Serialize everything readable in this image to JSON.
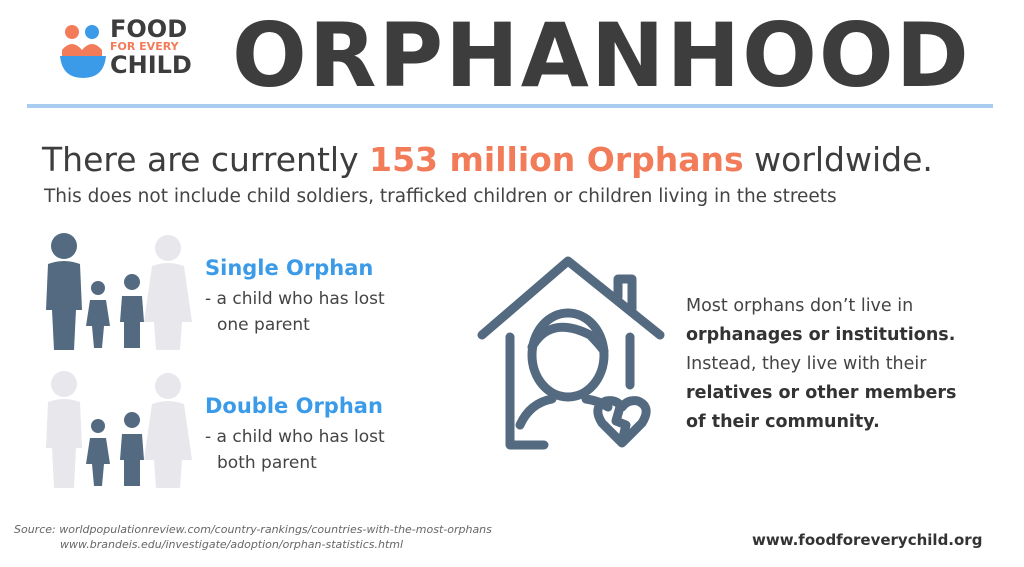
{
  "logo": {
    "line1": "FOOD",
    "line2": "FOR EVERY",
    "line3": "CHILD"
  },
  "header": {
    "title": "ORPHANHOOD"
  },
  "headline": {
    "before": "There are currently",
    "highlight": "153 million Orphans",
    "after": "worldwide."
  },
  "subline": "This does not include child soldiers, trafficked children or children living in the streets",
  "single_orphan": {
    "title": "Single Orphan",
    "lines": [
      "- a child who has lost",
      "one parent"
    ]
  },
  "double_orphan": {
    "title": "Double Orphan",
    "lines": [
      "- a child who has lost",
      "both parent"
    ]
  },
  "note": {
    "lines": [
      {
        "text": "Most orphans don’t live in",
        "bold": false
      },
      {
        "text": "orphanages or institutions.",
        "bold": true
      },
      {
        "text": "Instead, they live with their",
        "bold": false
      },
      {
        "text": "relatives or other members",
        "bold": true
      },
      {
        "text": "of their community.",
        "bold": true
      }
    ]
  },
  "sources": {
    "label": "Source:",
    "lines": [
      "worldpopulationreview.com/country-rankings/countries-with-the-most-orphans",
      "www.brandeis.edu/investigate/adoption/orphan-statistics.html"
    ]
  },
  "website": "www.foodforeverychild.org"
}
